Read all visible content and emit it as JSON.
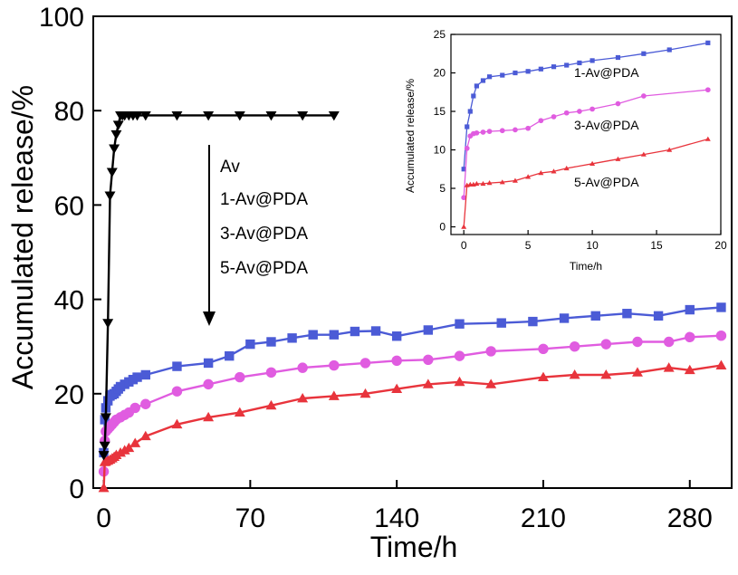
{
  "chart_data": [
    {
      "id": "main",
      "type": "line",
      "title": "",
      "xlabel": "Time/h",
      "ylabel": "Accumulated release/%",
      "xlim": [
        -5,
        300
      ],
      "ylim": [
        0,
        100
      ],
      "xticks": [
        0,
        70,
        140,
        210,
        280
      ],
      "yticks": [
        0,
        20,
        40,
        60,
        80,
        100
      ],
      "grid": false,
      "legend_entries": [
        "Av",
        "1-Av@PDA",
        "3-Av@PDA",
        "5-Av@PDA"
      ],
      "legend_arrow": "down",
      "series": [
        {
          "name": "Av",
          "color": "#000000",
          "marker": "triangle-down",
          "x": [
            0,
            0.5,
            1,
            2,
            3,
            4,
            5,
            6,
            7,
            8,
            9,
            10,
            12,
            14,
            16,
            20,
            35,
            50,
            65,
            80,
            95,
            110
          ],
          "y": [
            7,
            9,
            15,
            35,
            62,
            67,
            72,
            75,
            77,
            79,
            79,
            79,
            79,
            79,
            79,
            79,
            79,
            79,
            79,
            79,
            79,
            79
          ]
        },
        {
          "name": "1-Av@PDA",
          "color": "#4b5bd6",
          "marker": "square",
          "x": [
            0,
            0.5,
            1,
            2,
            3,
            4,
            5,
            6,
            7,
            8,
            10,
            12,
            14,
            16,
            20,
            35,
            50,
            60,
            70,
            80,
            90,
            100,
            110,
            120,
            130,
            140,
            155,
            170,
            190,
            205,
            220,
            235,
            250,
            265,
            280,
            295
          ],
          "y": [
            7.5,
            14.5,
            17,
            18.5,
            19.5,
            19.8,
            20,
            20.5,
            21,
            21.5,
            22,
            22.5,
            23,
            23.5,
            24,
            25.8,
            26.5,
            28,
            30.5,
            31,
            31.8,
            32.5,
            32.5,
            33.2,
            33.3,
            32.2,
            33.5,
            34.8,
            35,
            35.3,
            36,
            36.5,
            37,
            36.5,
            37.8,
            38.3
          ]
        },
        {
          "name": "3-Av@PDA",
          "color": "#e05ce0",
          "marker": "circle",
          "x": [
            0,
            0.5,
            1,
            2,
            3,
            4,
            5,
            6,
            8,
            10,
            12,
            15,
            20,
            35,
            50,
            65,
            80,
            95,
            110,
            125,
            140,
            155,
            170,
            185,
            210,
            225,
            240,
            255,
            270,
            280,
            295
          ],
          "y": [
            3.5,
            10,
            12,
            12.5,
            13,
            13.5,
            14,
            14.5,
            15,
            15.5,
            16,
            17,
            17.8,
            20.5,
            22,
            23.5,
            24.5,
            25.5,
            26,
            26.5,
            27,
            27.2,
            28,
            29,
            29.5,
            30,
            30.5,
            31,
            31,
            32,
            32.3
          ]
        },
        {
          "name": "5-Av@PDA",
          "color": "#e8343c",
          "marker": "triangle-up",
          "x": [
            0,
            0.5,
            1,
            2,
            3,
            4,
            5,
            6,
            8,
            10,
            12,
            15,
            20,
            35,
            50,
            65,
            80,
            95,
            110,
            125,
            140,
            155,
            170,
            185,
            210,
            225,
            240,
            255,
            270,
            280,
            295
          ],
          "y": [
            0,
            5.5,
            5.6,
            5.8,
            6,
            6.3,
            6.6,
            7,
            7.5,
            8,
            8.5,
            9.5,
            11,
            13.5,
            15,
            16,
            17.5,
            19,
            19.5,
            20,
            21,
            22,
            22.5,
            22,
            23.5,
            24,
            24,
            24.5,
            25.5,
            25,
            26
          ]
        }
      ]
    },
    {
      "id": "inset",
      "type": "line",
      "title": "",
      "xlabel": "Time/h",
      "ylabel": "Accumulated release/%",
      "xlim": [
        -1,
        20
      ],
      "ylim": [
        -1,
        25
      ],
      "xticks": [
        0,
        5,
        10,
        15,
        20
      ],
      "yticks": [
        0,
        5,
        10,
        15,
        20,
        25
      ],
      "grid": false,
      "series": [
        {
          "name": "1-Av@PDA",
          "color": "#4b5bd6",
          "marker": "square",
          "x": [
            0,
            0.25,
            0.5,
            0.75,
            1,
            1.5,
            2,
            3,
            4,
            5,
            6,
            7,
            8,
            9,
            10,
            12,
            14,
            16,
            19
          ],
          "y": [
            7.5,
            13,
            15,
            17,
            18.3,
            19,
            19.5,
            19.7,
            20,
            20.2,
            20.5,
            20.8,
            21,
            21.3,
            21.6,
            22,
            22.5,
            23,
            23.9
          ]
        },
        {
          "name": "3-Av@PDA",
          "color": "#e05ce0",
          "marker": "circle",
          "x": [
            0,
            0.25,
            0.5,
            0.75,
            1,
            1.5,
            2,
            3,
            4,
            5,
            6,
            7,
            8,
            9,
            10,
            12,
            14,
            19
          ],
          "y": [
            3.8,
            10.2,
            11.8,
            12.1,
            12.2,
            12.3,
            12.4,
            12.5,
            12.6,
            12.8,
            13.8,
            14.3,
            14.8,
            15,
            15.3,
            16,
            17,
            17.8
          ]
        },
        {
          "name": "5-Av@PDA",
          "color": "#e8343c",
          "marker": "triangle-up",
          "x": [
            0,
            0.25,
            0.5,
            0.75,
            1,
            1.5,
            2,
            3,
            4,
            5,
            6,
            7,
            8,
            10,
            12,
            14,
            16,
            19
          ],
          "y": [
            0,
            5.4,
            5.5,
            5.5,
            5.6,
            5.6,
            5.7,
            5.8,
            6,
            6.5,
            7,
            7.2,
            7.6,
            8.2,
            8.8,
            9.4,
            10,
            11.4
          ]
        }
      ]
    }
  ]
}
